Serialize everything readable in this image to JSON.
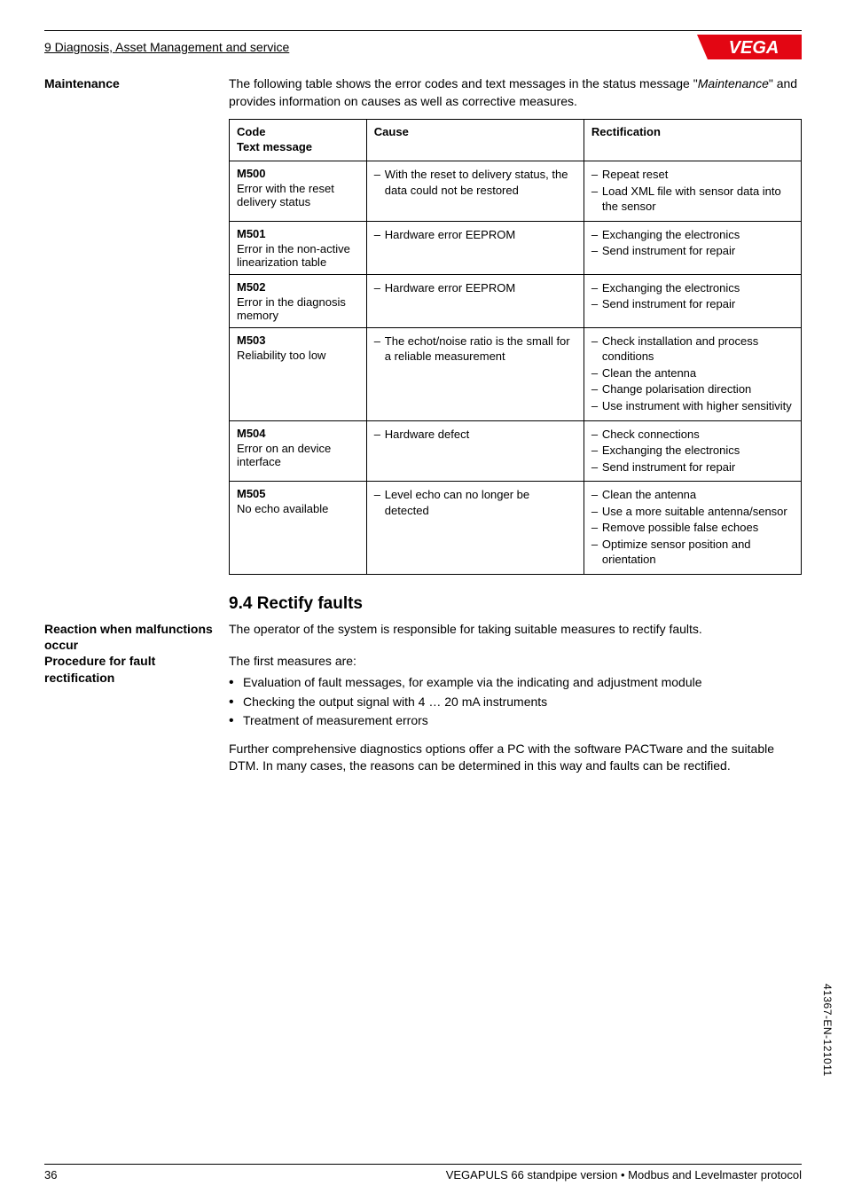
{
  "header": {
    "section_title": "9 Diagnosis, Asset Management and service",
    "logo_text": "VEGA"
  },
  "maintenance": {
    "side_label": "Maintenance",
    "intro_pre": "The following table shows the error codes and text messages in the status message \"",
    "intro_em": "Maintenance",
    "intro_post": "\" and provides information on causes as well as corrective measures.",
    "col_code_line1": "Code",
    "col_code_line2": "Text message",
    "col_cause": "Cause",
    "col_rect": "Rectification",
    "rows": [
      {
        "code": "M500",
        "sub": "Error with the reset delivery status",
        "cause": [
          "With the reset to delivery status, the data could not be restored"
        ],
        "rect": [
          "Repeat reset",
          "Load XML file with sensor data into the sensor"
        ]
      },
      {
        "code": "M501",
        "sub": "Error in the non-active linearization table",
        "cause": [
          "Hardware error EEPROM"
        ],
        "rect": [
          "Exchanging the electronics",
          "Send instrument for repair"
        ]
      },
      {
        "code": "M502",
        "sub": "Error in the diagnosis memory",
        "cause": [
          "Hardware error EEPROM"
        ],
        "rect": [
          "Exchanging the electronics",
          "Send instrument for repair"
        ]
      },
      {
        "code": "M503",
        "sub": "Reliability too low",
        "cause": [
          "The echot/noise ratio is the small for a reliable measurement"
        ],
        "rect": [
          "Check installation and process conditions",
          "Clean the antenna",
          "Change polarisation direction",
          "Use instrument with higher sensitivity"
        ]
      },
      {
        "code": "M504",
        "sub": "Error on an device interface",
        "cause": [
          "Hardware defect"
        ],
        "rect": [
          "Check connections",
          "Exchanging the electronics",
          "Send instrument for repair"
        ]
      },
      {
        "code": "M505",
        "sub": "No echo available",
        "cause": [
          "Level echo can no longer be detected"
        ],
        "rect": [
          "Clean the antenna",
          "Use a more suitable antenna/sensor",
          "Remove possible false echoes",
          "Optimize sensor position and orientation"
        ]
      }
    ]
  },
  "rectify": {
    "heading": "9.4   Rectify faults",
    "reaction_label": "Reaction when malfunctions occur",
    "reaction_text": "The operator of the system is responsible for taking suitable measures to rectify faults.",
    "procedure_label": "Procedure for fault rectification",
    "first_measures": "The first measures are:",
    "bullets": [
      "Evaluation of fault messages, for example via the indicating and adjustment module",
      "Checking the output signal with 4 … 20 mA instruments",
      "Treatment of measurement errors"
    ],
    "further": "Further comprehensive diagnostics options offer a PC with the software PACTware and the suitable DTM. In many cases, the reasons can be determined in this way and faults can be rectified."
  },
  "footer": {
    "page": "36",
    "doc": "VEGAPULS 66 standpipe version • Modbus and Levelmaster protocol"
  },
  "side_code": "41367-EN-121011",
  "colors": {
    "logo_red": "#e30613",
    "logo_white": "#ffffff"
  }
}
